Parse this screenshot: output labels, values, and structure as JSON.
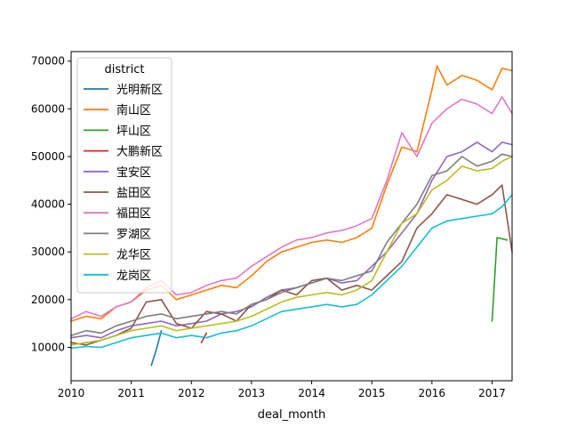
{
  "chart_data": {
    "type": "line",
    "xlabel": "deal_month",
    "ylabel": "",
    "xlim": [
      "2010-01",
      "2017-05"
    ],
    "ylim": [
      3000,
      72000
    ],
    "x_ticks": [
      {
        "date": "2010-01",
        "label": "2010"
      },
      {
        "date": "2011-01",
        "label": "2011"
      },
      {
        "date": "2012-01",
        "label": "2012"
      },
      {
        "date": "2013-01",
        "label": "2013"
      },
      {
        "date": "2014-01",
        "label": "2014"
      },
      {
        "date": "2015-01",
        "label": "2015"
      },
      {
        "date": "2016-01",
        "label": "2016"
      },
      {
        "date": "2017-01",
        "label": "2017"
      }
    ],
    "y_ticks": [
      {
        "value": 10000,
        "label": "10000"
      },
      {
        "value": 20000,
        "label": "20000"
      },
      {
        "value": 30000,
        "label": "30000"
      },
      {
        "value": 40000,
        "label": "40000"
      },
      {
        "value": 50000,
        "label": "50000"
      },
      {
        "value": 60000,
        "label": "60000"
      },
      {
        "value": 70000,
        "label": "70000"
      }
    ],
    "grid": false,
    "legend": {
      "title": "district",
      "position": "top-left"
    },
    "series": [
      {
        "name": "光明新区",
        "color": "#1f77b4",
        "points": [
          [
            "2011-05",
            6200
          ],
          [
            "2011-06",
            9500
          ],
          [
            "2011-07",
            13500
          ]
        ]
      },
      {
        "name": "南山区",
        "color": "#ff7f0e",
        "points": [
          [
            "2010-01",
            15500
          ],
          [
            "2010-04",
            16500
          ],
          [
            "2010-07",
            16000
          ],
          [
            "2010-10",
            18500
          ],
          [
            "2011-01",
            19500
          ],
          [
            "2011-04",
            22000
          ],
          [
            "2011-07",
            23000
          ],
          [
            "2011-10",
            20000
          ],
          [
            "2012-01",
            21000
          ],
          [
            "2012-04",
            22000
          ],
          [
            "2012-07",
            23000
          ],
          [
            "2012-10",
            22500
          ],
          [
            "2013-01",
            25000
          ],
          [
            "2013-04",
            28000
          ],
          [
            "2013-07",
            30000
          ],
          [
            "2013-10",
            31000
          ],
          [
            "2014-01",
            32000
          ],
          [
            "2014-04",
            32500
          ],
          [
            "2014-07",
            32000
          ],
          [
            "2014-10",
            33000
          ],
          [
            "2015-01",
            35000
          ],
          [
            "2015-04",
            44000
          ],
          [
            "2015-07",
            52000
          ],
          [
            "2015-10",
            51000
          ],
          [
            "2016-01",
            64000
          ],
          [
            "2016-02",
            69000
          ],
          [
            "2016-04",
            65000
          ],
          [
            "2016-07",
            67000
          ],
          [
            "2016-10",
            66000
          ],
          [
            "2017-01",
            64000
          ],
          [
            "2017-03",
            68500
          ],
          [
            "2017-05",
            68000
          ]
        ]
      },
      {
        "name": "坪山区",
        "color": "#2ca02c",
        "points": [
          [
            "2017-01",
            15500
          ],
          [
            "2017-02",
            33000
          ],
          [
            "2017-04",
            32500
          ]
        ]
      },
      {
        "name": "大鹏新区",
        "color": "#d62728",
        "points": [
          [
            "2012-03",
            11000
          ],
          [
            "2012-04",
            13000
          ]
        ]
      },
      {
        "name": "宝安区",
        "color": "#9467bd",
        "points": [
          [
            "2010-01",
            12000
          ],
          [
            "2010-04",
            12500
          ],
          [
            "2010-07",
            12000
          ],
          [
            "2010-10",
            13500
          ],
          [
            "2011-01",
            14500
          ],
          [
            "2011-04",
            15000
          ],
          [
            "2011-07",
            15500
          ],
          [
            "2011-10",
            14500
          ],
          [
            "2012-01",
            15000
          ],
          [
            "2012-04",
            15500
          ],
          [
            "2012-07",
            17000
          ],
          [
            "2012-10",
            17500
          ],
          [
            "2013-01",
            18500
          ],
          [
            "2013-04",
            20500
          ],
          [
            "2013-07",
            22000
          ],
          [
            "2013-10",
            22500
          ],
          [
            "2014-01",
            23500
          ],
          [
            "2014-04",
            24500
          ],
          [
            "2014-07",
            23500
          ],
          [
            "2014-10",
            24000
          ],
          [
            "2015-01",
            27000
          ],
          [
            "2015-04",
            30000
          ],
          [
            "2015-07",
            34000
          ],
          [
            "2015-10",
            38000
          ],
          [
            "2016-01",
            45000
          ],
          [
            "2016-04",
            50000
          ],
          [
            "2016-07",
            51000
          ],
          [
            "2016-10",
            53000
          ],
          [
            "2017-01",
            51000
          ],
          [
            "2017-03",
            53000
          ],
          [
            "2017-05",
            52500
          ]
        ]
      },
      {
        "name": "盐田区",
        "color": "#8c564b",
        "points": [
          [
            "2010-01",
            11000
          ],
          [
            "2010-04",
            10500
          ],
          [
            "2010-07",
            11500
          ],
          [
            "2010-10",
            12500
          ],
          [
            "2011-01",
            14000
          ],
          [
            "2011-04",
            19500
          ],
          [
            "2011-07",
            20000
          ],
          [
            "2011-10",
            15000
          ],
          [
            "2012-01",
            14000
          ],
          [
            "2012-04",
            17500
          ],
          [
            "2012-07",
            17000
          ],
          [
            "2012-10",
            15500
          ],
          [
            "2013-01",
            19000
          ],
          [
            "2013-04",
            20000
          ],
          [
            "2013-07",
            22000
          ],
          [
            "2013-10",
            21000
          ],
          [
            "2014-01",
            24000
          ],
          [
            "2014-04",
            24500
          ],
          [
            "2014-07",
            22000
          ],
          [
            "2014-10",
            23000
          ],
          [
            "2015-01",
            22000
          ],
          [
            "2015-04",
            25000
          ],
          [
            "2015-07",
            28000
          ],
          [
            "2015-10",
            35000
          ],
          [
            "2016-01",
            38000
          ],
          [
            "2016-04",
            42000
          ],
          [
            "2016-07",
            41000
          ],
          [
            "2016-10",
            40000
          ],
          [
            "2017-01",
            42000
          ],
          [
            "2017-03",
            44000
          ],
          [
            "2017-05",
            30000
          ]
        ]
      },
      {
        "name": "福田区",
        "color": "#e377c2",
        "points": [
          [
            "2010-01",
            16000
          ],
          [
            "2010-04",
            17500
          ],
          [
            "2010-07",
            16500
          ],
          [
            "2010-10",
            18500
          ],
          [
            "2011-01",
            19500
          ],
          [
            "2011-04",
            22500
          ],
          [
            "2011-07",
            24000
          ],
          [
            "2011-10",
            21000
          ],
          [
            "2012-01",
            21500
          ],
          [
            "2012-04",
            23000
          ],
          [
            "2012-07",
            24000
          ],
          [
            "2012-10",
            24500
          ],
          [
            "2013-01",
            27000
          ],
          [
            "2013-04",
            29000
          ],
          [
            "2013-07",
            31000
          ],
          [
            "2013-10",
            32500
          ],
          [
            "2014-01",
            33000
          ],
          [
            "2014-04",
            34000
          ],
          [
            "2014-07",
            34500
          ],
          [
            "2014-10",
            35500
          ],
          [
            "2015-01",
            37000
          ],
          [
            "2015-04",
            45000
          ],
          [
            "2015-07",
            55000
          ],
          [
            "2015-10",
            50000
          ],
          [
            "2016-01",
            57000
          ],
          [
            "2016-04",
            60000
          ],
          [
            "2016-07",
            62000
          ],
          [
            "2016-10",
            61000
          ],
          [
            "2017-01",
            59000
          ],
          [
            "2017-03",
            62500
          ],
          [
            "2017-05",
            59000
          ]
        ]
      },
      {
        "name": "罗湖区",
        "color": "#7f7f7f",
        "points": [
          [
            "2010-01",
            12500
          ],
          [
            "2010-04",
            13500
          ],
          [
            "2010-07",
            13000
          ],
          [
            "2010-10",
            14500
          ],
          [
            "2011-01",
            15500
          ],
          [
            "2011-04",
            16500
          ],
          [
            "2011-07",
            17000
          ],
          [
            "2011-10",
            16000
          ],
          [
            "2012-01",
            16500
          ],
          [
            "2012-04",
            17000
          ],
          [
            "2012-07",
            17500
          ],
          [
            "2012-10",
            17000
          ],
          [
            "2013-01",
            19000
          ],
          [
            "2013-04",
            20000
          ],
          [
            "2013-07",
            21500
          ],
          [
            "2013-10",
            22500
          ],
          [
            "2014-01",
            23500
          ],
          [
            "2014-04",
            24500
          ],
          [
            "2014-07",
            24000
          ],
          [
            "2014-10",
            25000
          ],
          [
            "2015-01",
            26000
          ],
          [
            "2015-04",
            32000
          ],
          [
            "2015-07",
            36000
          ],
          [
            "2015-10",
            40000
          ],
          [
            "2016-01",
            46000
          ],
          [
            "2016-04",
            47000
          ],
          [
            "2016-07",
            50000
          ],
          [
            "2016-10",
            48000
          ],
          [
            "2017-01",
            49000
          ],
          [
            "2017-03",
            50500
          ],
          [
            "2017-05",
            50000
          ]
        ]
      },
      {
        "name": "龙华区",
        "color": "#bcbd22",
        "points": [
          [
            "2010-01",
            10500
          ],
          [
            "2010-04",
            11000
          ],
          [
            "2010-07",
            11500
          ],
          [
            "2010-10",
            12500
          ],
          [
            "2011-01",
            13500
          ],
          [
            "2011-04",
            14000
          ],
          [
            "2011-07",
            14500
          ],
          [
            "2011-10",
            13500
          ],
          [
            "2012-01",
            14000
          ],
          [
            "2012-04",
            14500
          ],
          [
            "2012-07",
            15000
          ],
          [
            "2012-10",
            15500
          ],
          [
            "2013-01",
            16500
          ],
          [
            "2013-04",
            18000
          ],
          [
            "2013-07",
            19500
          ],
          [
            "2013-10",
            20500
          ],
          [
            "2014-01",
            21000
          ],
          [
            "2014-04",
            21500
          ],
          [
            "2014-07",
            21000
          ],
          [
            "2014-10",
            22000
          ],
          [
            "2015-01",
            24000
          ],
          [
            "2015-04",
            30000
          ],
          [
            "2015-07",
            36000
          ],
          [
            "2015-10",
            38000
          ],
          [
            "2016-01",
            43000
          ],
          [
            "2016-04",
            45000
          ],
          [
            "2016-07",
            48000
          ],
          [
            "2016-10",
            47000
          ],
          [
            "2017-01",
            47500
          ],
          [
            "2017-03",
            49000
          ],
          [
            "2017-05",
            50000
          ]
        ]
      },
      {
        "name": "龙岗区",
        "color": "#17becf",
        "points": [
          [
            "2010-01",
            9800
          ],
          [
            "2010-04",
            10200
          ],
          [
            "2010-07",
            10000
          ],
          [
            "2010-10",
            11000
          ],
          [
            "2011-01",
            12000
          ],
          [
            "2011-04",
            12500
          ],
          [
            "2011-07",
            13000
          ],
          [
            "2011-10",
            12000
          ],
          [
            "2012-01",
            12500
          ],
          [
            "2012-04",
            12000
          ],
          [
            "2012-07",
            13000
          ],
          [
            "2012-10",
            13500
          ],
          [
            "2013-01",
            14500
          ],
          [
            "2013-04",
            16000
          ],
          [
            "2013-07",
            17500
          ],
          [
            "2013-10",
            18000
          ],
          [
            "2014-01",
            18500
          ],
          [
            "2014-04",
            19000
          ],
          [
            "2014-07",
            18500
          ],
          [
            "2014-10",
            19000
          ],
          [
            "2015-01",
            21000
          ],
          [
            "2015-04",
            24000
          ],
          [
            "2015-07",
            27000
          ],
          [
            "2015-10",
            31000
          ],
          [
            "2016-01",
            35000
          ],
          [
            "2016-04",
            36500
          ],
          [
            "2016-07",
            37000
          ],
          [
            "2016-10",
            37500
          ],
          [
            "2017-01",
            38000
          ],
          [
            "2017-03",
            39500
          ],
          [
            "2017-05",
            42000
          ]
        ]
      }
    ]
  }
}
